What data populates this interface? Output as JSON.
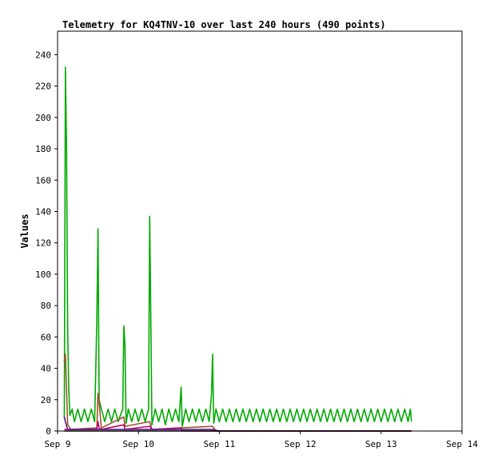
{
  "chart_data": {
    "type": "line",
    "title": "Telemetry for KQ4TNV-10 over last 240 hours (490 points)",
    "xlabel": "",
    "ylabel": "Values",
    "x_tick_labels": [
      "Sep 9",
      "Sep 10",
      "Sep 11",
      "Sep 12",
      "Sep 13",
      "Sep 14"
    ],
    "y_tick_labels": [
      "0",
      "20",
      "40",
      "60",
      "80",
      "100",
      "120",
      "140",
      "160",
      "180",
      "200",
      "220",
      "240"
    ],
    "xlim": [
      "Sep 9",
      "Sep 14"
    ],
    "ylim": [
      0,
      255
    ],
    "grid": false,
    "series": [
      {
        "color": "#00aa00",
        "points": [
          [
            "Sep 9 02:00",
            8
          ],
          [
            "Sep 9 02:20",
            232
          ],
          [
            "Sep 9 02:40",
            180
          ],
          [
            "Sep 9 03:00",
            64
          ],
          [
            "Sep 9 03:20",
            26
          ],
          [
            "Sep 9 03:40",
            10
          ],
          [
            "Sep 9 04:20",
            14
          ],
          [
            "Sep 9 05:00",
            6
          ],
          [
            "Sep 9 06:00",
            14
          ],
          [
            "Sep 9 07:00",
            6
          ],
          [
            "Sep 9 08:00",
            14
          ],
          [
            "Sep 9 09:00",
            6
          ],
          [
            "Sep 9 10:00",
            14
          ],
          [
            "Sep 9 11:00",
            6
          ],
          [
            "Sep 9 11:40",
            72
          ],
          [
            "Sep 9 12:00",
            129
          ],
          [
            "Sep 9 12:20",
            20
          ],
          [
            "Sep 9 13:00",
            14
          ],
          [
            "Sep 9 14:00",
            6
          ],
          [
            "Sep 9 15:00",
            14
          ],
          [
            "Sep 9 16:00",
            6
          ],
          [
            "Sep 9 17:00",
            14
          ],
          [
            "Sep 9 18:00",
            6
          ],
          [
            "Sep 9 19:20",
            14
          ],
          [
            "Sep 9 19:40",
            67
          ],
          [
            "Sep 9 20:00",
            55
          ],
          [
            "Sep 9 20:20",
            5
          ],
          [
            "Sep 9 21:00",
            14
          ],
          [
            "Sep 9 22:00",
            6
          ],
          [
            "Sep 9 23:00",
            14
          ],
          [
            "Sep 10 00:00",
            6
          ],
          [
            "Sep 10 01:00",
            14
          ],
          [
            "Sep 10 02:00",
            6
          ],
          [
            "Sep 10 03:00",
            14
          ],
          [
            "Sep 10 03:20",
            137
          ],
          [
            "Sep 10 03:40",
            72
          ],
          [
            "Sep 10 04:00",
            4
          ],
          [
            "Sep 10 05:00",
            14
          ],
          [
            "Sep 10 06:00",
            6
          ],
          [
            "Sep 10 07:00",
            14
          ],
          [
            "Sep 10 08:00",
            4
          ],
          [
            "Sep 10 09:00",
            14
          ],
          [
            "Sep 10 10:00",
            6
          ],
          [
            "Sep 10 11:00",
            14
          ],
          [
            "Sep 10 12:00",
            6
          ],
          [
            "Sep 10 12:40",
            28
          ],
          [
            "Sep 10 13:00",
            3
          ],
          [
            "Sep 10 14:00",
            14
          ],
          [
            "Sep 10 15:00",
            6
          ],
          [
            "Sep 10 16:00",
            14
          ],
          [
            "Sep 10 17:00",
            6
          ],
          [
            "Sep 10 18:00",
            14
          ],
          [
            "Sep 10 19:00",
            6
          ],
          [
            "Sep 10 20:00",
            14
          ],
          [
            "Sep 10 21:00",
            6
          ],
          [
            "Sep 10 21:40",
            23
          ],
          [
            "Sep 10 22:00",
            49
          ],
          [
            "Sep 10 22:20",
            5
          ],
          [
            "Sep 10 23:00",
            14
          ],
          [
            "Sep 11 00:00",
            6
          ],
          [
            "Sep 11 01:00",
            14
          ],
          [
            "Sep 11 02:00",
            6
          ],
          [
            "Sep 11 03:00",
            14
          ],
          [
            "Sep 11 04:00",
            6
          ],
          [
            "Sep 11 05:00",
            14
          ],
          [
            "Sep 11 06:00",
            6
          ],
          [
            "Sep 11 07:00",
            14
          ],
          [
            "Sep 11 08:00",
            6
          ],
          [
            "Sep 11 09:00",
            14
          ],
          [
            "Sep 11 10:00",
            6
          ],
          [
            "Sep 11 11:00",
            14
          ],
          [
            "Sep 11 12:00",
            6
          ],
          [
            "Sep 11 13:00",
            14
          ],
          [
            "Sep 11 14:00",
            6
          ],
          [
            "Sep 11 15:00",
            14
          ],
          [
            "Sep 11 16:00",
            6
          ],
          [
            "Sep 11 17:00",
            14
          ],
          [
            "Sep 11 18:00",
            6
          ],
          [
            "Sep 11 19:00",
            14
          ],
          [
            "Sep 11 20:00",
            6
          ],
          [
            "Sep 11 21:00",
            14
          ],
          [
            "Sep 11 22:00",
            6
          ],
          [
            "Sep 11 23:00",
            14
          ],
          [
            "Sep 12 00:00",
            6
          ],
          [
            "Sep 12 01:00",
            14
          ],
          [
            "Sep 12 02:00",
            6
          ],
          [
            "Sep 12 03:00",
            14
          ],
          [
            "Sep 12 04:00",
            6
          ],
          [
            "Sep 12 05:00",
            14
          ],
          [
            "Sep 12 06:00",
            6
          ],
          [
            "Sep 12 07:00",
            14
          ],
          [
            "Sep 12 08:00",
            6
          ],
          [
            "Sep 12 09:00",
            14
          ],
          [
            "Sep 12 10:00",
            6
          ],
          [
            "Sep 12 11:00",
            14
          ],
          [
            "Sep 12 12:00",
            6
          ],
          [
            "Sep 12 13:00",
            14
          ],
          [
            "Sep 12 14:00",
            6
          ],
          [
            "Sep 12 15:00",
            14
          ],
          [
            "Sep 12 16:00",
            6
          ],
          [
            "Sep 12 17:00",
            14
          ],
          [
            "Sep 12 18:00",
            6
          ],
          [
            "Sep 12 19:00",
            14
          ],
          [
            "Sep 12 20:00",
            6
          ],
          [
            "Sep 12 21:00",
            14
          ],
          [
            "Sep 12 22:00",
            6
          ],
          [
            "Sep 12 23:00",
            14
          ],
          [
            "Sep 13 00:00",
            6
          ],
          [
            "Sep 13 01:00",
            14
          ],
          [
            "Sep 13 02:00",
            6
          ],
          [
            "Sep 13 03:00",
            14
          ],
          [
            "Sep 13 04:00",
            6
          ],
          [
            "Sep 13 05:00",
            14
          ],
          [
            "Sep 13 06:00",
            6
          ],
          [
            "Sep 13 07:00",
            14
          ],
          [
            "Sep 13 08:00",
            6
          ],
          [
            "Sep 13 08:40",
            14
          ],
          [
            "Sep 13 09:00",
            6
          ]
        ]
      },
      {
        "color": "#a0522d",
        "points": [
          [
            "Sep 9 02:00",
            44
          ],
          [
            "Sep 9 02:20",
            49
          ],
          [
            "Sep 9 02:40",
            26
          ],
          [
            "Sep 9 03:00",
            4
          ],
          [
            "Sep 9 04:00",
            1
          ],
          [
            "Sep 9 11:40",
            2
          ],
          [
            "Sep 9 12:00",
            24
          ],
          [
            "Sep 9 12:20",
            18
          ],
          [
            "Sep 9 13:00",
            2
          ],
          [
            "Sep 9 19:40",
            9
          ],
          [
            "Sep 9 20:00",
            3
          ],
          [
            "Sep 10 03:20",
            6
          ],
          [
            "Sep 10 04:00",
            1
          ],
          [
            "Sep 10 12:40",
            2
          ],
          [
            "Sep 10 22:00",
            3
          ],
          [
            "Sep 10 23:00",
            0
          ],
          [
            "Sep 13 09:00",
            0
          ]
        ]
      },
      {
        "color": "#cc0066",
        "points": [
          [
            "Sep 9 02:00",
            1
          ],
          [
            "Sep 9 11:40",
            1
          ],
          [
            "Sep 9 12:00",
            6
          ],
          [
            "Sep 9 12:20",
            2
          ],
          [
            "Sep 9 13:00",
            1
          ],
          [
            "Sep 9 19:40",
            4
          ],
          [
            "Sep 9 20:00",
            1
          ],
          [
            "Sep 10 03:20",
            3
          ],
          [
            "Sep 10 04:00",
            1
          ],
          [
            "Sep 10 12:40",
            2
          ],
          [
            "Sep 10 13:00",
            0
          ],
          [
            "Sep 13 09:00",
            0
          ]
        ]
      },
      {
        "color": "#551a8b",
        "points": [
          [
            "Sep 9 02:00",
            9
          ],
          [
            "Sep 9 02:20",
            6
          ],
          [
            "Sep 9 03:00",
            1
          ],
          [
            "Sep 9 12:00",
            1
          ],
          [
            "Sep 10 03:20",
            1
          ],
          [
            "Sep 10 22:00",
            1
          ],
          [
            "Sep 11 00:00",
            0
          ],
          [
            "Sep 13 09:00",
            0
          ]
        ]
      },
      {
        "color": "#000000",
        "points": [
          [
            "Sep 9 02:00",
            0
          ],
          [
            "Sep 13 09:00",
            0
          ]
        ]
      }
    ]
  }
}
